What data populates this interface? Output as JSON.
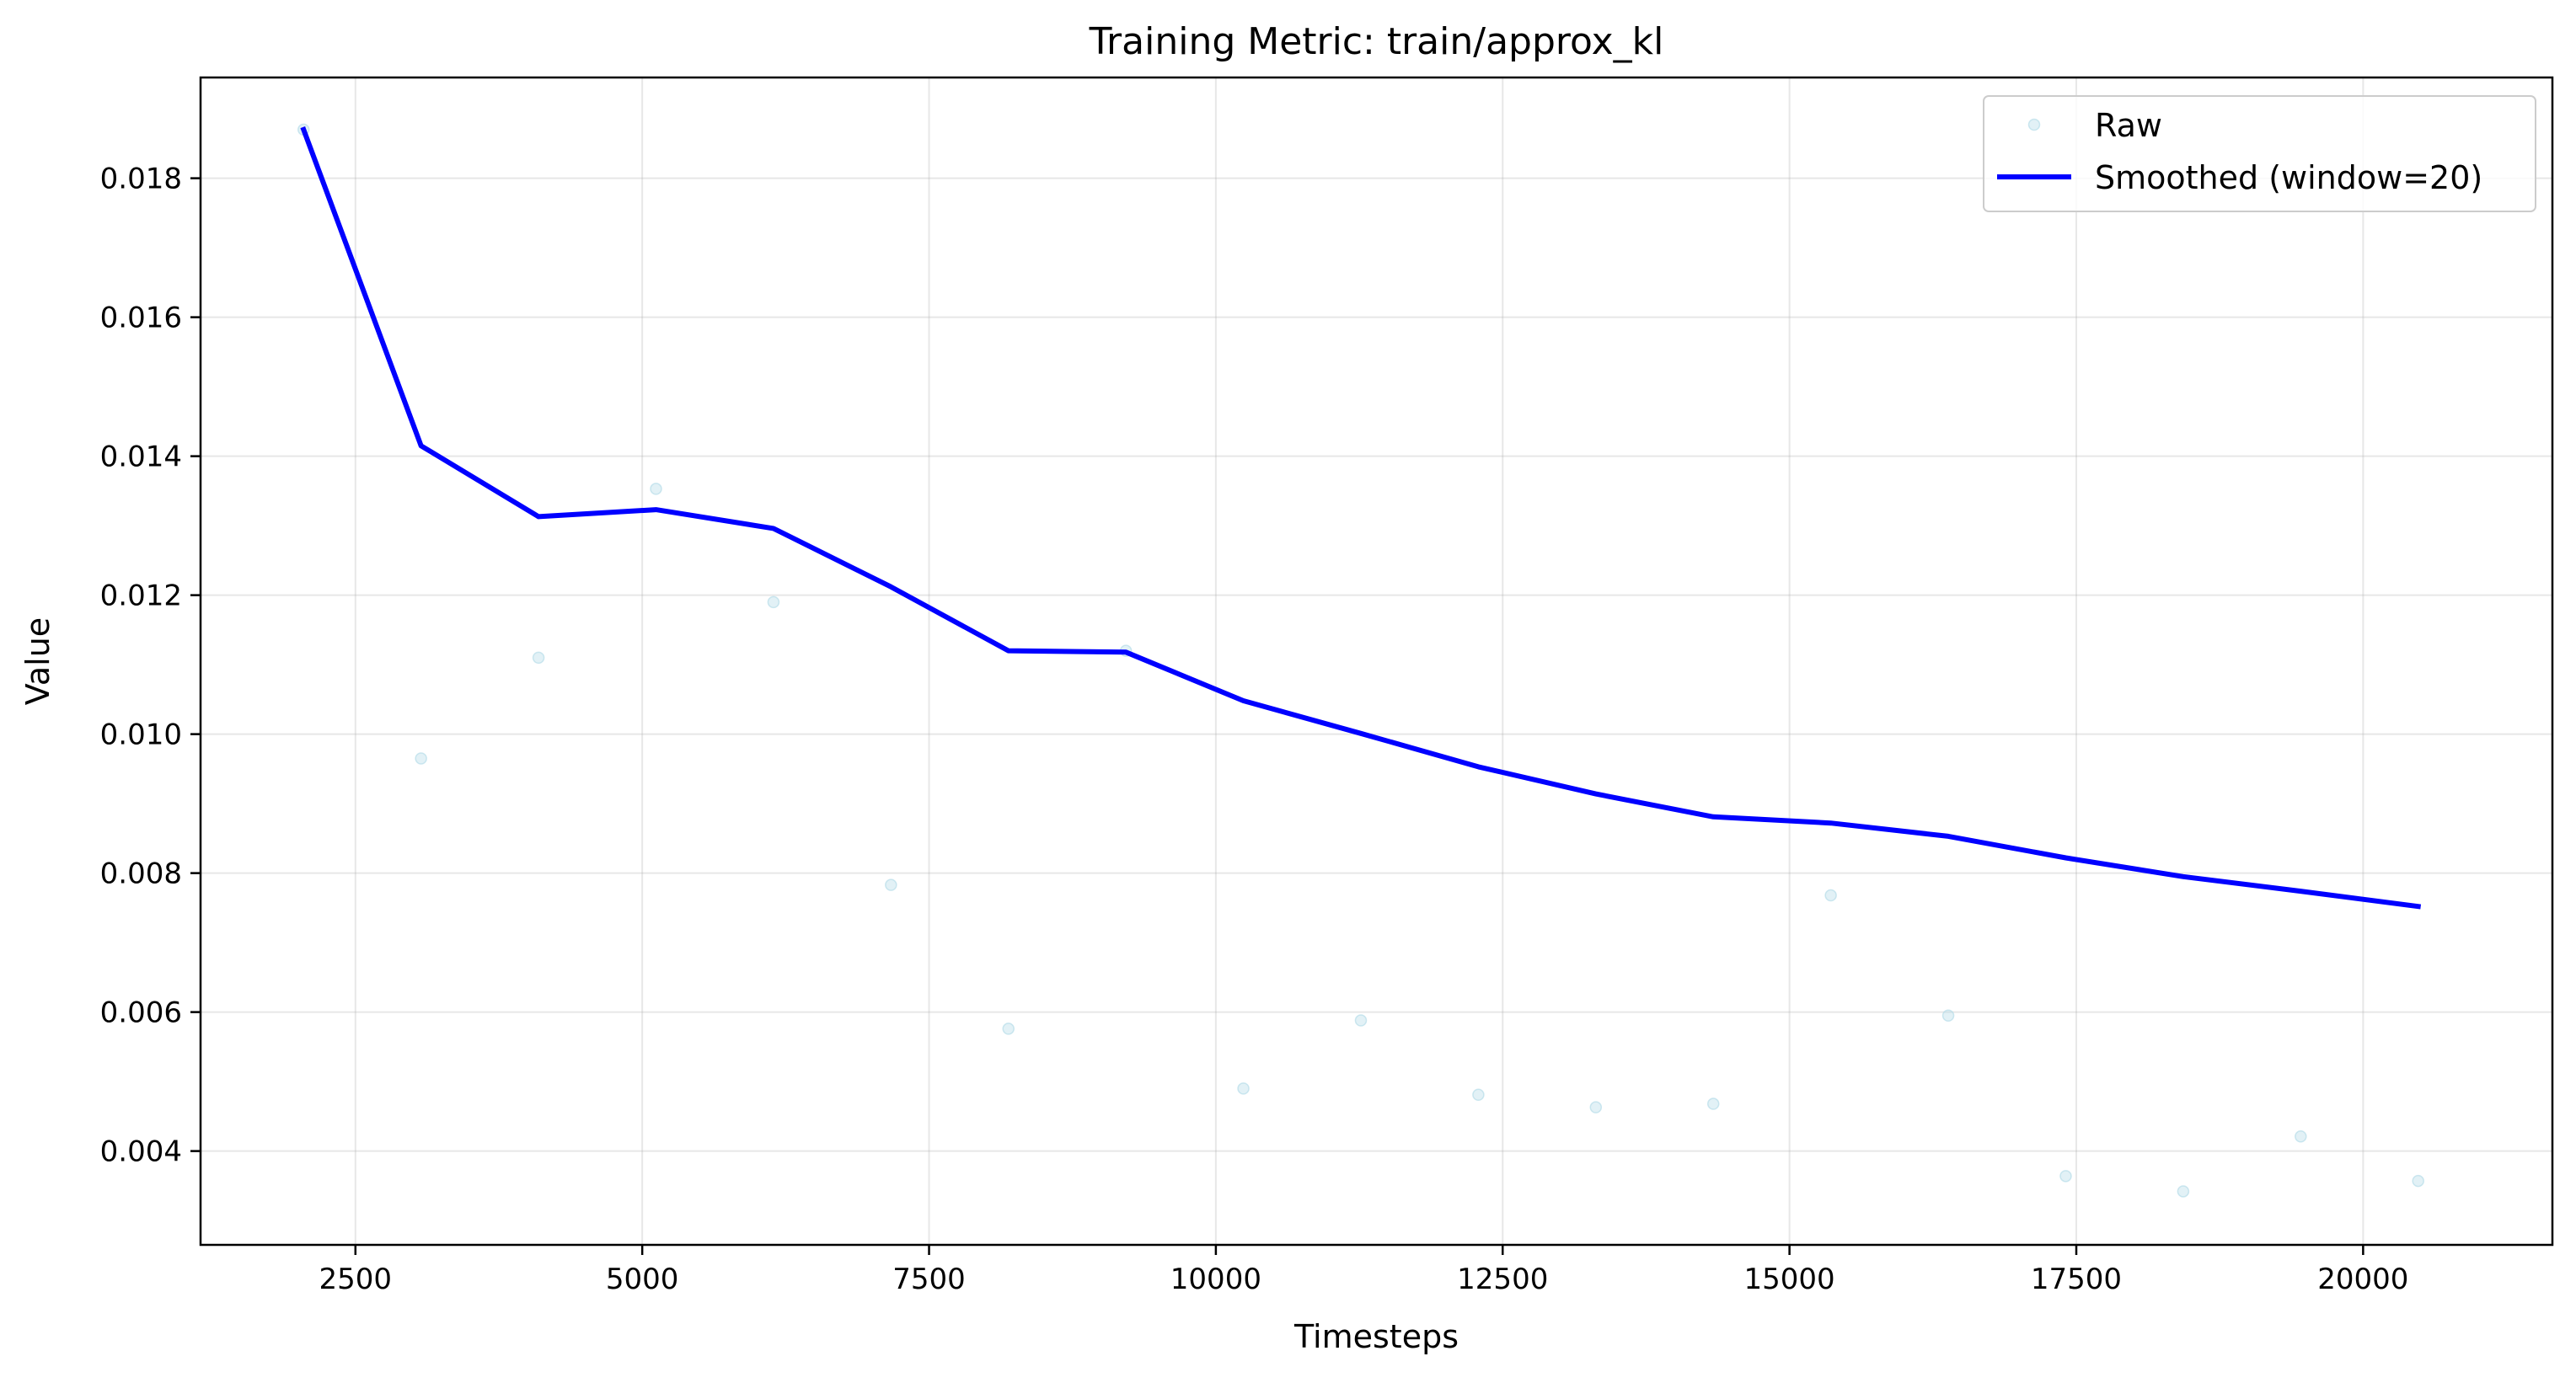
{
  "chart_data": {
    "type": "line",
    "title": "Training Metric: train/approx_kl",
    "xlabel": "Timesteps",
    "ylabel": "Value",
    "xlim": [
      1150,
      21650
    ],
    "ylim": [
      0.00265,
      0.01945
    ],
    "grid": true,
    "legend_position": "top-right",
    "x_ticks": [
      2500,
      5000,
      7500,
      10000,
      12500,
      15000,
      17500,
      20000
    ],
    "x_tick_labels": [
      "2500",
      "5000",
      "7500",
      "10000",
      "12500",
      "15000",
      "17500",
      "20000"
    ],
    "y_ticks": [
      0.004,
      0.006,
      0.008,
      0.01,
      0.012,
      0.014,
      0.016,
      0.018
    ],
    "y_tick_labels": [
      "0.004",
      "0.006",
      "0.008",
      "0.010",
      "0.012",
      "0.014",
      "0.016",
      "0.018"
    ],
    "series": [
      {
        "name": "Raw",
        "style": "markers",
        "color": "#add8e6",
        "x": [
          2048,
          3072,
          4096,
          5120,
          6144,
          7168,
          8192,
          9216,
          10240,
          11264,
          12288,
          13312,
          14336,
          15360,
          16384,
          17408,
          18432,
          19456,
          20480
        ],
        "y": [
          0.0187,
          0.00965,
          0.0111,
          0.01353,
          0.0119,
          0.00783,
          0.00576,
          0.0112,
          0.0049,
          0.00588,
          0.00481,
          0.00463,
          0.00468,
          0.00768,
          0.00595,
          0.00364,
          0.00342,
          0.00421,
          0.00357
        ]
      },
      {
        "name": "Smoothed (window=20)",
        "style": "line",
        "color": "#0000ff",
        "x": [
          2048,
          3072,
          4096,
          5120,
          6144,
          7168,
          8192,
          9216,
          10240,
          11264,
          12288,
          13312,
          14336,
          15360,
          16384,
          17408,
          18432,
          19456,
          20480
        ],
        "y": [
          0.0187,
          0.01415,
          0.01313,
          0.01323,
          0.01296,
          0.01212,
          0.0112,
          0.01118,
          0.01048,
          0.01001,
          0.00953,
          0.00914,
          0.00881,
          0.00872,
          0.00853,
          0.00822,
          0.00795,
          0.00774,
          0.00752
        ]
      }
    ]
  }
}
